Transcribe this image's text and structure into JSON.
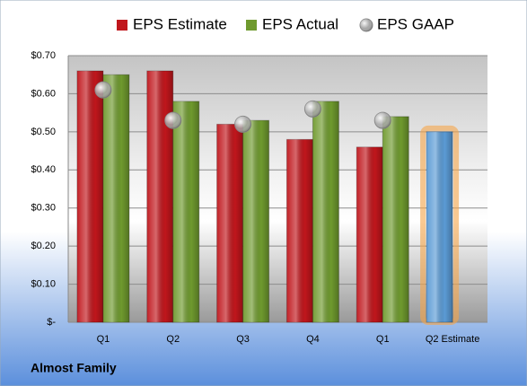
{
  "chart_data": {
    "type": "bar",
    "footer": "Almost Family",
    "categories": [
      "Q1",
      "Q2",
      "Q3",
      "Q4",
      "Q1",
      "Q2 Estimate"
    ],
    "series": [
      {
        "name": "EPS Estimate",
        "type": "bar",
        "color": "#c0161c",
        "point_colors": [
          "#c0161c",
          "#c0161c",
          "#c0161c",
          "#c0161c",
          "#c0161c",
          "#5b9bd5"
        ],
        "values": [
          0.66,
          0.66,
          0.52,
          0.48,
          0.46,
          0.5
        ]
      },
      {
        "name": "EPS Actual",
        "type": "bar",
        "color": "#6f9a2e",
        "values": [
          0.65,
          0.58,
          0.53,
          0.58,
          0.54,
          null
        ]
      },
      {
        "name": "EPS GAAP",
        "type": "scatter",
        "color": "#a6a6a6",
        "values": [
          0.61,
          0.53,
          0.52,
          0.56,
          0.53,
          null
        ]
      }
    ],
    "ylim": [
      0,
      0.7
    ],
    "yticks": [
      {
        "value": 0,
        "label": "$-"
      },
      {
        "value": 0.1,
        "label": "$0.10"
      },
      {
        "value": 0.2,
        "label": "$0.20"
      },
      {
        "value": 0.3,
        "label": "$0.30"
      },
      {
        "value": 0.4,
        "label": "$0.40"
      },
      {
        "value": 0.5,
        "label": "$0.50"
      },
      {
        "value": 0.6,
        "label": "$0.60"
      },
      {
        "value": 0.7,
        "label": "$0.70"
      }
    ],
    "grid": true,
    "legend": "top"
  }
}
